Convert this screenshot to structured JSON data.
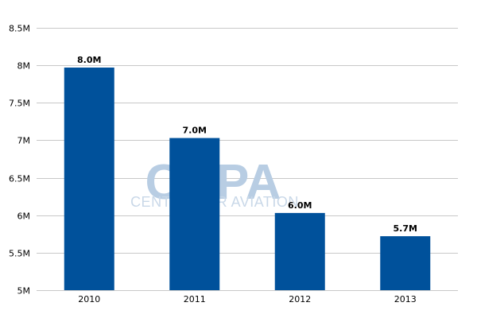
{
  "chart_data": {
    "type": "bar",
    "categories": [
      "2010",
      "2011",
      "2012",
      "2013"
    ],
    "values": [
      7.97,
      7.03,
      6.03,
      5.72
    ],
    "data_labels": [
      "8.0M",
      "7.0M",
      "6.0M",
      "5.7M"
    ],
    "y_ticks": [
      5,
      5.5,
      6,
      6.5,
      7,
      7.5,
      8,
      8.5
    ],
    "y_tick_labels": [
      "5M",
      "5.5M",
      "6M",
      "6.5M",
      "7M",
      "7.5M",
      "8M",
      "8.5M"
    ],
    "ylim": [
      5,
      8.5
    ],
    "title": "",
    "xlabel": "",
    "ylabel": "",
    "grid": true,
    "bar_color": "#00519b",
    "grid_color": "#c8c8c8"
  },
  "watermark": {
    "logo": "CAPA",
    "tagline": "CENTRE FOR AVIATION"
  }
}
